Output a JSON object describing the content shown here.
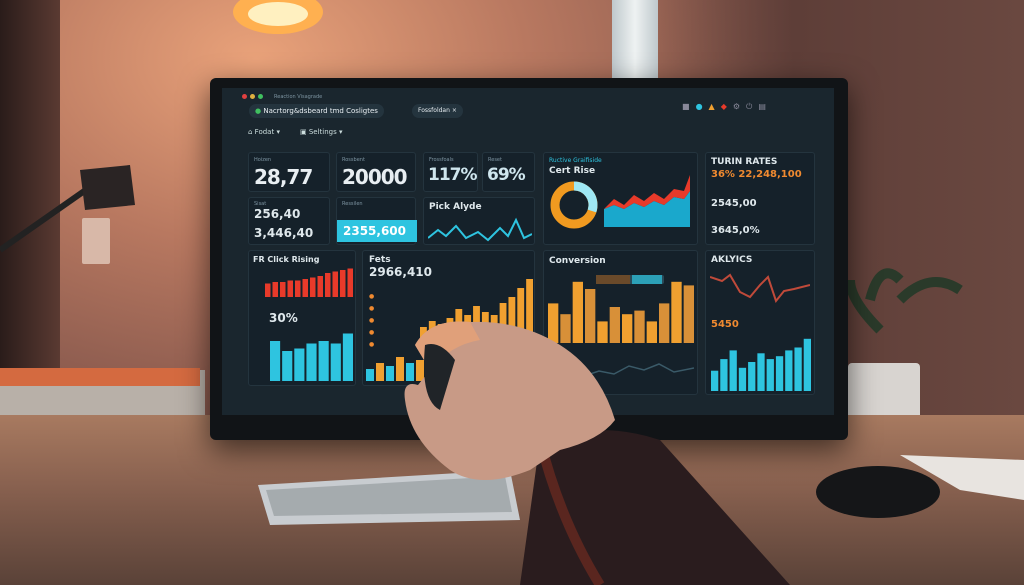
{
  "window": {
    "title": "Reaction Visagrade",
    "app_title": "Nacrtorg&dsbeard tmd Cosligtes",
    "tab": "Fossfoldan"
  },
  "toolbar": {
    "menu1": "Fodat",
    "menu2": "Seltings"
  },
  "kpis": [
    {
      "label": "Hoizen",
      "value": "28,77"
    },
    {
      "label": "Rossbent",
      "value": "20000"
    },
    {
      "label": "Frossfoals",
      "value": "117%"
    },
    {
      "label": "Reset",
      "value": "69%"
    }
  ],
  "small_cards": [
    {
      "label": "Sisat",
      "value": "256,40"
    },
    {
      "label": "",
      "value": "3,446,40"
    },
    {
      "label": "Ressilen",
      "value": "2355,600"
    }
  ],
  "pick_panel": {
    "title": "Pick Alyde"
  },
  "cohort_panel": {
    "header": "Ructive Graifiside",
    "title": "Cert Rise"
  },
  "rates_panel": {
    "title": "TURIN RATES",
    "highlight": "36% 22,248,100",
    "value1": "2545,00",
    "value2": "3645,0%"
  },
  "click_panel": {
    "title": "FR Click Rising",
    "value": "30%"
  },
  "fets_panel": {
    "title": "Fets",
    "value": "2966,410"
  },
  "conversion_panel": {
    "title": "Conversion"
  },
  "analytics_panel": {
    "title": "AKLYICS",
    "value": "5450"
  },
  "colors": {
    "orange": "#f0a030",
    "cyan": "#2ec4e0",
    "red": "#e83a2a",
    "screen_bg": "#1a262e"
  }
}
